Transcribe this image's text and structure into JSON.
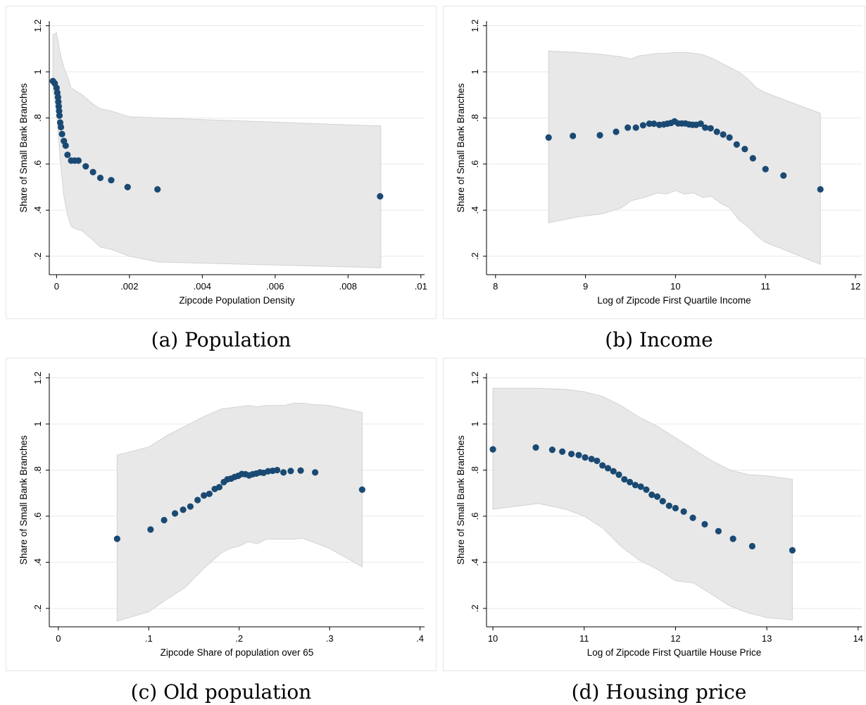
{
  "chart_data": [
    {
      "type": "scatter",
      "caption": "(a) Population",
      "xlabel": "Zipcode Population Density",
      "ylabel": "Share of Small Bank Branches",
      "xlim": [
        -0.0002,
        0.0101
      ],
      "ylim": [
        0.12,
        1.22
      ],
      "xticks": [
        0,
        0.002,
        0.004,
        0.006,
        0.008,
        0.01
      ],
      "xticklabels": [
        "0",
        ".002",
        ".004",
        ".006",
        ".008",
        ".01"
      ],
      "yticks": [
        0.2,
        0.4,
        0.6,
        0.8,
        1.0,
        1.2
      ],
      "yticklabels": [
        ".2",
        ".4",
        ".6",
        ".8",
        "1",
        "1.2"
      ],
      "grid": true,
      "points": {
        "x": [
          -0.0001,
          -5e-05,
          0.0,
          2e-05,
          4e-05,
          5e-05,
          6e-05,
          7e-05,
          8e-05,
          0.0001,
          0.00012,
          0.00015,
          0.0002,
          0.00025,
          0.0003,
          0.0004,
          0.0005,
          0.0006,
          0.0008,
          0.001,
          0.0012,
          0.0015,
          0.00195,
          0.00277,
          0.00888
        ],
        "y": [
          0.96,
          0.95,
          0.93,
          0.91,
          0.89,
          0.87,
          0.85,
          0.83,
          0.81,
          0.78,
          0.76,
          0.73,
          0.7,
          0.68,
          0.64,
          0.615,
          0.615,
          0.615,
          0.59,
          0.565,
          0.54,
          0.53,
          0.5,
          0.49,
          0.46
        ]
      },
      "band": {
        "x": [
          -0.0001,
          0.0,
          0.0001,
          0.0002,
          0.0003,
          0.0004,
          0.0005,
          0.0007,
          0.001,
          0.0012,
          0.0015,
          0.002,
          0.0028,
          0.0089
        ],
        "upper": [
          1.16,
          1.17,
          1.08,
          1.02,
          0.98,
          0.93,
          0.92,
          0.9,
          0.86,
          0.84,
          0.83,
          0.805,
          0.8,
          0.765
        ],
        "lower": [
          0.92,
          0.83,
          0.62,
          0.46,
          0.38,
          0.33,
          0.32,
          0.31,
          0.27,
          0.24,
          0.23,
          0.2,
          0.175,
          0.15
        ]
      }
    },
    {
      "type": "scatter",
      "caption": "(b) Income",
      "xlabel": "Log of Zipcode First Quartile Income",
      "ylabel": "Share of Small Bank Branches",
      "xlim": [
        7.9,
        12.07
      ],
      "ylim": [
        0.12,
        1.22
      ],
      "xticks": [
        8,
        9,
        10,
        11,
        12
      ],
      "xticklabels": [
        "8",
        "9",
        "10",
        "11",
        "12"
      ],
      "yticks": [
        0.2,
        0.4,
        0.6,
        0.8,
        1.0,
        1.2
      ],
      "yticklabels": [
        ".2",
        ".4",
        ".6",
        ".8",
        "1",
        "1.2"
      ],
      "grid": true,
      "points": {
        "x": [
          8.59,
          8.86,
          9.16,
          9.34,
          9.47,
          9.56,
          9.64,
          9.71,
          9.76,
          9.82,
          9.87,
          9.91,
          9.95,
          9.99,
          10.03,
          10.07,
          10.11,
          10.15,
          10.19,
          10.23,
          10.28,
          10.33,
          10.39,
          10.46,
          10.53,
          10.6,
          10.68,
          10.77,
          10.86,
          11.0,
          11.2,
          11.61
        ],
        "y": [
          0.715,
          0.722,
          0.725,
          0.74,
          0.758,
          0.758,
          0.768,
          0.775,
          0.775,
          0.77,
          0.772,
          0.775,
          0.778,
          0.785,
          0.776,
          0.776,
          0.776,
          0.772,
          0.77,
          0.77,
          0.775,
          0.758,
          0.755,
          0.74,
          0.728,
          0.715,
          0.685,
          0.665,
          0.625,
          0.578,
          0.55,
          0.49
        ]
      },
      "band": {
        "x": [
          8.59,
          8.9,
          9.2,
          9.4,
          9.5,
          9.6,
          9.7,
          9.8,
          9.9,
          10.0,
          10.1,
          10.2,
          10.3,
          10.4,
          10.5,
          10.6,
          10.7,
          10.8,
          10.9,
          11.0,
          11.2,
          11.61
        ],
        "upper": [
          1.09,
          1.085,
          1.075,
          1.065,
          1.055,
          1.07,
          1.075,
          1.08,
          1.08,
          1.085,
          1.085,
          1.08,
          1.075,
          1.06,
          1.04,
          1.02,
          1.0,
          0.97,
          0.93,
          0.91,
          0.88,
          0.82
        ],
        "lower": [
          0.345,
          0.37,
          0.385,
          0.41,
          0.44,
          0.45,
          0.46,
          0.475,
          0.47,
          0.485,
          0.47,
          0.475,
          0.455,
          0.46,
          0.43,
          0.41,
          0.36,
          0.33,
          0.29,
          0.26,
          0.23,
          0.165
        ]
      }
    },
    {
      "type": "scatter",
      "caption": "(c) Old population",
      "xlabel": "Zipcode Share of population over 65",
      "ylabel": "Share of Small Bank Branches",
      "xlim": [
        -0.01,
        0.405
      ],
      "ylim": [
        0.12,
        1.22
      ],
      "xticks": [
        0,
        0.1,
        0.2,
        0.3,
        0.4
      ],
      "xticklabels": [
        "0",
        ".1",
        ".2",
        ".3",
        ".4"
      ],
      "yticks": [
        0.2,
        0.4,
        0.6,
        0.8,
        1.0,
        1.2
      ],
      "yticklabels": [
        ".2",
        ".4",
        ".6",
        ".8",
        "1",
        "1.2"
      ],
      "grid": true,
      "points": {
        "x": [
          0.065,
          0.102,
          0.117,
          0.129,
          0.138,
          0.146,
          0.154,
          0.161,
          0.167,
          0.173,
          0.178,
          0.183,
          0.187,
          0.191,
          0.195,
          0.199,
          0.203,
          0.207,
          0.211,
          0.215,
          0.219,
          0.223,
          0.227,
          0.232,
          0.237,
          0.242,
          0.249,
          0.257,
          0.268,
          0.284,
          0.336
        ],
        "y": [
          0.502,
          0.542,
          0.583,
          0.612,
          0.628,
          0.642,
          0.67,
          0.69,
          0.697,
          0.718,
          0.726,
          0.748,
          0.76,
          0.763,
          0.77,
          0.775,
          0.783,
          0.782,
          0.777,
          0.782,
          0.785,
          0.79,
          0.788,
          0.795,
          0.797,
          0.8,
          0.79,
          0.796,
          0.798,
          0.79,
          0.715
        ]
      },
      "band": {
        "x": [
          0.065,
          0.1,
          0.12,
          0.14,
          0.16,
          0.18,
          0.19,
          0.2,
          0.21,
          0.22,
          0.23,
          0.24,
          0.25,
          0.26,
          0.27,
          0.28,
          0.3,
          0.336
        ],
        "upper": [
          0.865,
          0.9,
          0.95,
          0.99,
          1.03,
          1.065,
          1.07,
          1.075,
          1.08,
          1.075,
          1.08,
          1.08,
          1.08,
          1.09,
          1.09,
          1.085,
          1.08,
          1.05
        ],
        "lower": [
          0.145,
          0.185,
          0.24,
          0.29,
          0.37,
          0.44,
          0.46,
          0.47,
          0.49,
          0.48,
          0.5,
          0.5,
          0.5,
          0.5,
          0.505,
          0.49,
          0.46,
          0.38
        ]
      }
    },
    {
      "type": "scatter",
      "caption": "(d) Housing price",
      "xlabel": "Log of Zipcode First Quartile House Price",
      "ylabel": "Share of Small Bank Branches",
      "xlim": [
        9.93,
        14.04
      ],
      "ylim": [
        0.12,
        1.22
      ],
      "xticks": [
        10,
        11,
        12,
        13,
        14
      ],
      "xticklabels": [
        "10",
        "11",
        "12",
        "13",
        "14"
      ],
      "yticks": [
        0.2,
        0.4,
        0.6,
        0.8,
        1.0,
        1.2
      ],
      "yticklabels": [
        ".2",
        ".4",
        ".6",
        ".8",
        "1",
        "1.2"
      ],
      "grid": true,
      "points": {
        "x": [
          10.0,
          10.47,
          10.65,
          10.76,
          10.86,
          10.94,
          11.01,
          11.08,
          11.14,
          11.2,
          11.26,
          11.32,
          11.38,
          11.44,
          11.5,
          11.56,
          11.62,
          11.68,
          11.74,
          11.8,
          11.86,
          11.93,
          12.0,
          12.09,
          12.19,
          12.32,
          12.47,
          12.63,
          12.84,
          13.28
        ],
        "y": [
          0.89,
          0.898,
          0.888,
          0.88,
          0.87,
          0.865,
          0.855,
          0.848,
          0.84,
          0.82,
          0.808,
          0.795,
          0.78,
          0.76,
          0.748,
          0.735,
          0.728,
          0.715,
          0.693,
          0.685,
          0.665,
          0.645,
          0.635,
          0.62,
          0.593,
          0.565,
          0.535,
          0.502,
          0.47,
          0.452
        ]
      },
      "band": {
        "x": [
          10.0,
          10.2,
          10.5,
          10.8,
          11.0,
          11.2,
          11.4,
          11.6,
          11.8,
          12.0,
          12.2,
          12.4,
          12.6,
          12.8,
          13.0,
          13.28
        ],
        "upper": [
          1.155,
          1.155,
          1.155,
          1.15,
          1.14,
          1.12,
          1.08,
          1.03,
          0.99,
          0.94,
          0.89,
          0.84,
          0.8,
          0.78,
          0.775,
          0.76
        ],
        "lower": [
          0.63,
          0.64,
          0.655,
          0.63,
          0.6,
          0.55,
          0.47,
          0.41,
          0.37,
          0.32,
          0.31,
          0.26,
          0.21,
          0.18,
          0.16,
          0.15
        ]
      }
    }
  ]
}
